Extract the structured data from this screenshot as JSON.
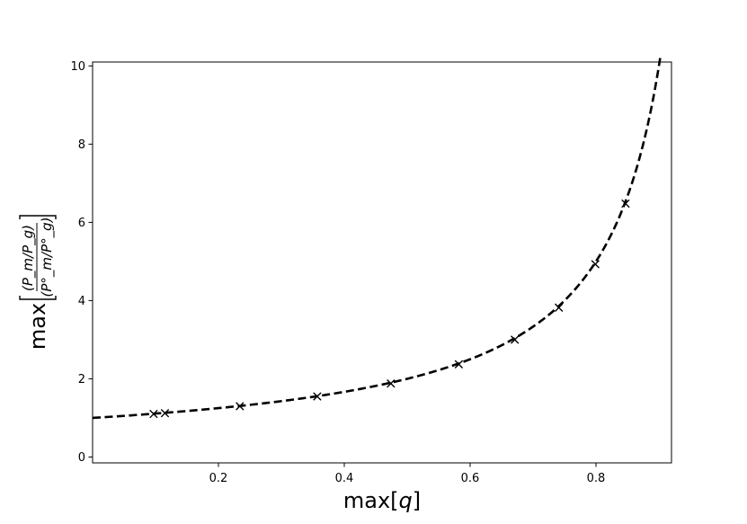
{
  "chart_data": {
    "type": "scatter",
    "title": "",
    "xlabel": {
      "prefix": "max[",
      "var": "q",
      "suffix": "]"
    },
    "ylabel": {
      "prefix": "max",
      "numerator": "(P_m/P_g)",
      "denominator": "(P°_m/P°_g)"
    },
    "xlim": [
      0.0,
      0.92
    ],
    "ylim": [
      -0.15,
      10.1
    ],
    "x_ticks": [
      0.2,
      0.4,
      0.6,
      0.8
    ],
    "x_tick_labels": [
      "0.2",
      "0.4",
      "0.6",
      "0.8"
    ],
    "y_ticks": [
      0,
      2,
      4,
      6,
      8,
      10
    ],
    "y_tick_labels": [
      "0",
      "2",
      "4",
      "6",
      "8",
      "10"
    ],
    "grid": false,
    "legend": "none",
    "series": [
      {
        "kind": "points",
        "marker": "x",
        "color": "#000000",
        "x": [
          0.097,
          0.115,
          0.234,
          0.357,
          0.474,
          0.582,
          0.671,
          0.741,
          0.799,
          0.847
        ],
        "y": [
          1.1,
          1.12,
          1.3,
          1.55,
          1.88,
          2.37,
          3.0,
          3.82,
          4.93,
          6.48
        ]
      },
      {
        "kind": "curve",
        "style": "dashed",
        "color": "#000000",
        "function": "1/(1-q)",
        "x_range": [
          0.0,
          0.902
        ]
      }
    ]
  }
}
